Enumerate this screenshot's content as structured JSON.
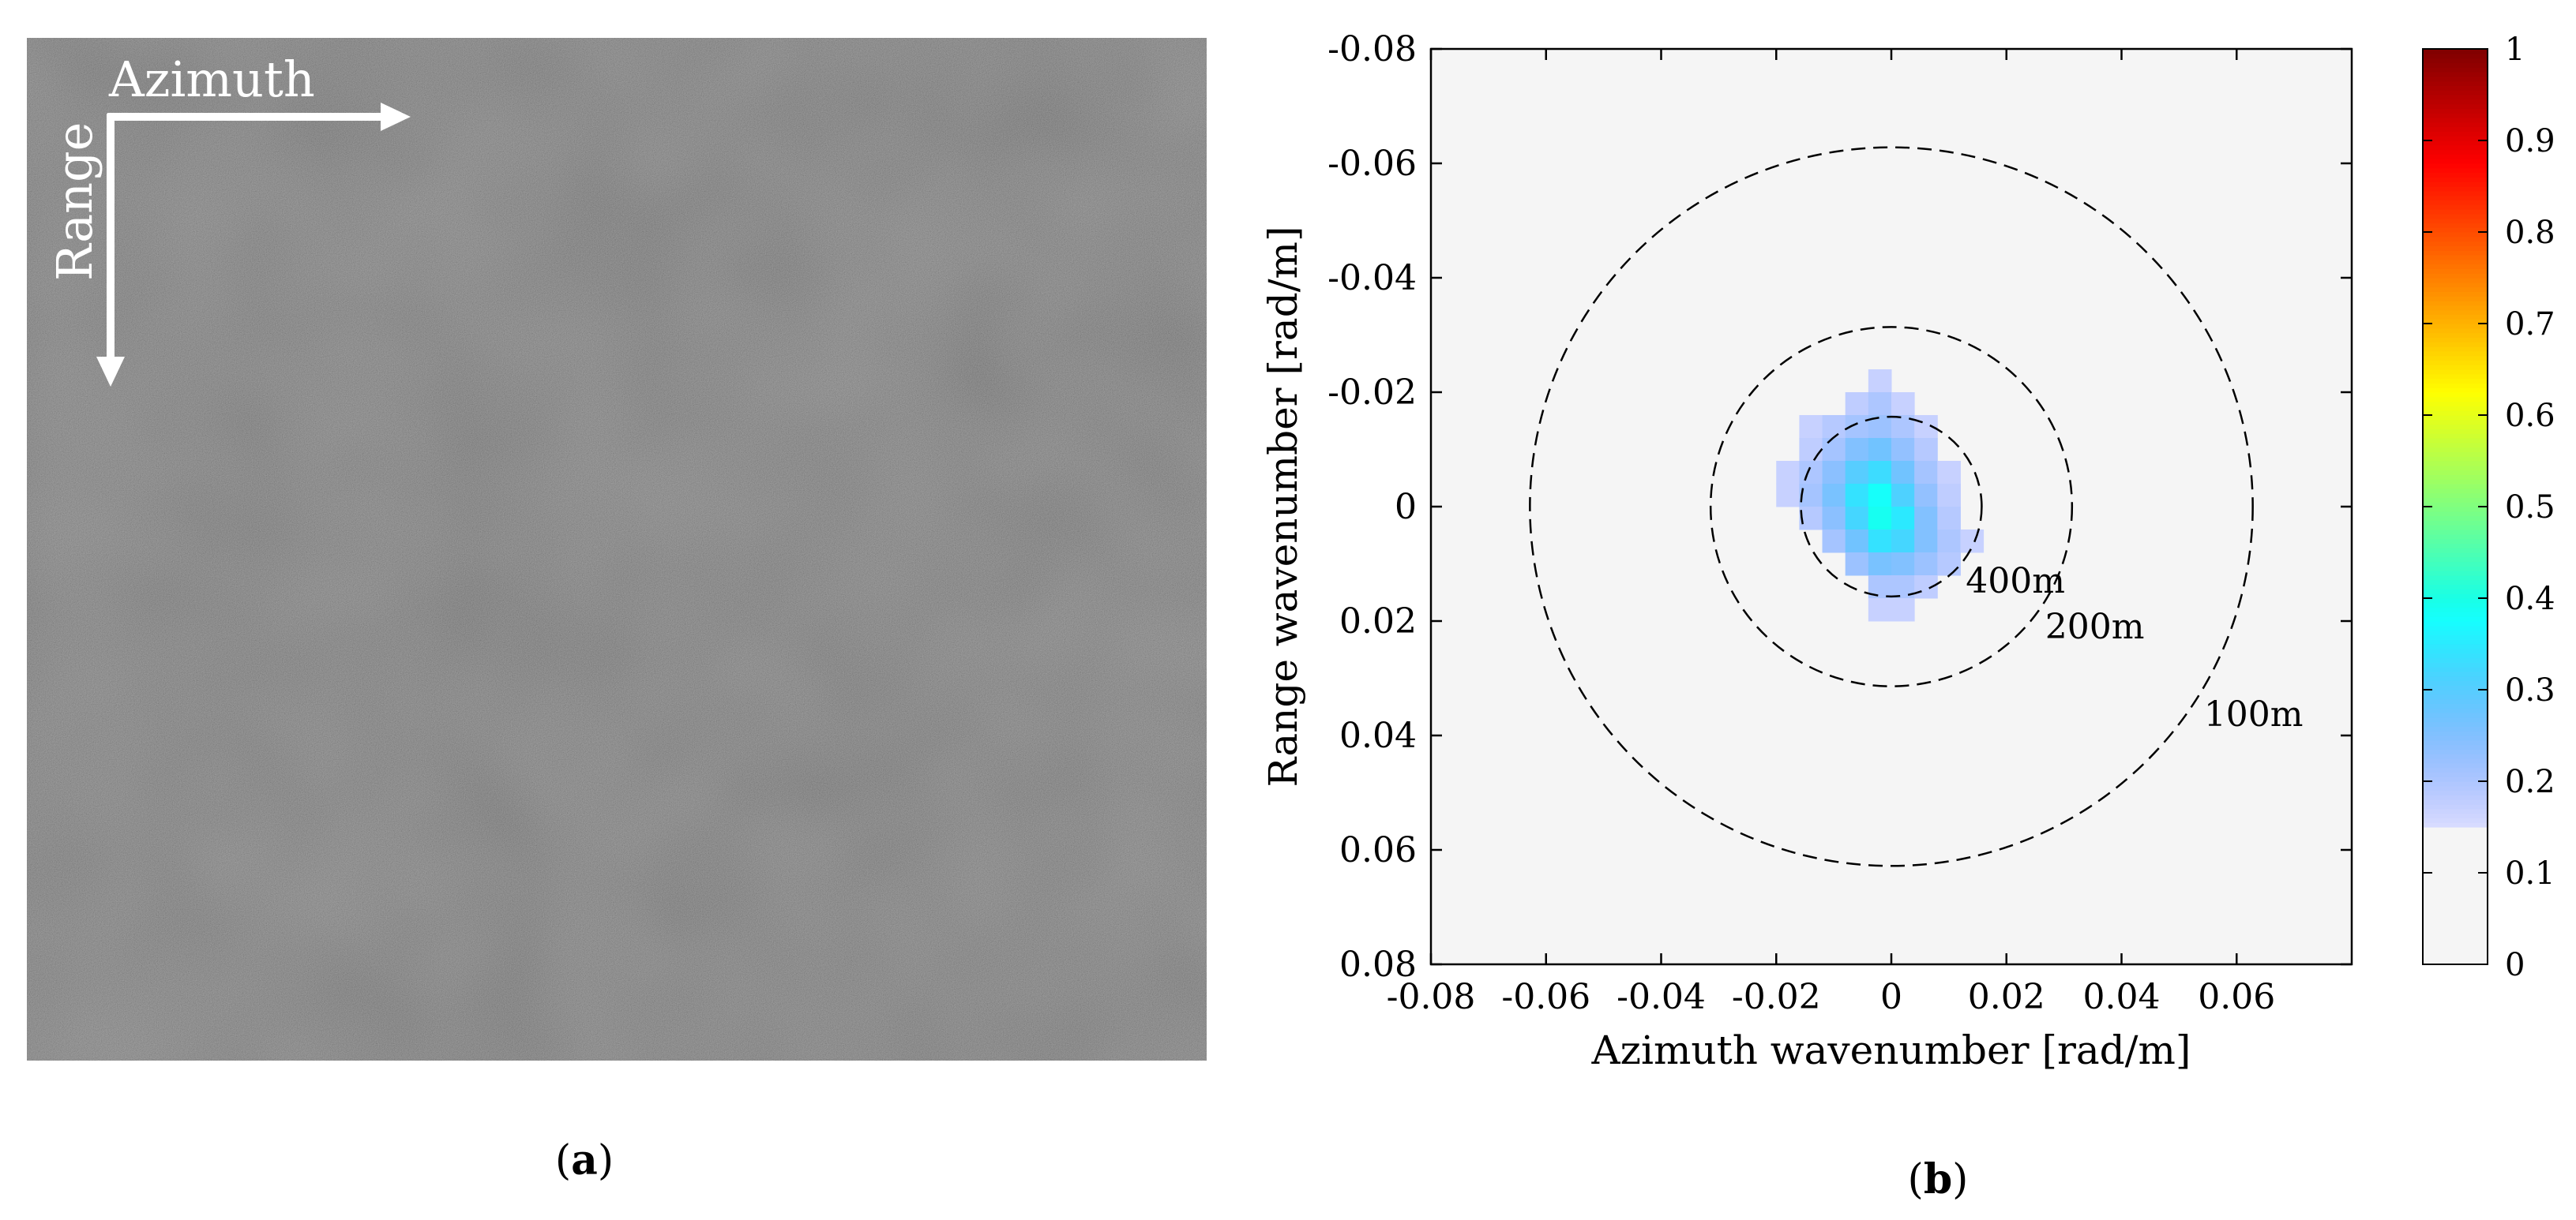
{
  "panel_a": {
    "arrow_labels": {
      "azimuth": "Azimuth",
      "range": "Range"
    },
    "caption": {
      "open": "(",
      "letter": "a",
      "close": ")"
    }
  },
  "panel_b": {
    "caption": {
      "open": "(",
      "letter": "b",
      "close": ")"
    }
  },
  "colors": {
    "sar_base": "#5a5a5a",
    "plot_background": "#f5f5f5",
    "contour_line": "#000000",
    "spectrum_cyan": "#00f0f0"
  },
  "chart_data": {
    "type": "heatmap",
    "title": "",
    "xlabel": "Azimuth wavenumber [rad/m]",
    "ylabel": "Range wavenumber [rad/m]",
    "xlim": [
      -0.08,
      0.08
    ],
    "ylim": [
      -0.08,
      0.08
    ],
    "y_reversed": true,
    "x_ticks": [
      -0.08,
      -0.06,
      -0.04,
      -0.02,
      0,
      0.02,
      0.04,
      0.06
    ],
    "x_tick_labels": [
      "-0.08",
      "-0.06",
      "-0.04",
      "-0.02",
      "0",
      "0.02",
      "0.04",
      "0.06"
    ],
    "y_ticks": [
      -0.08,
      -0.06,
      -0.04,
      -0.02,
      0,
      0.02,
      0.04,
      0.06,
      0.08
    ],
    "y_tick_labels": [
      "-0.08",
      "-0.06",
      "-0.04",
      "-0.02",
      "0",
      "0.02",
      "0.04",
      "0.06",
      "0.08"
    ],
    "grid": false,
    "colorbar": {
      "range": [
        0,
        1
      ],
      "ticks": [
        0,
        0.1,
        0.2,
        0.3,
        0.4,
        0.5,
        0.6,
        0.7,
        0.8,
        0.9,
        1
      ],
      "tick_labels": [
        "0",
        "0.1",
        "0.2",
        "0.3",
        "0.4",
        "0.5",
        "0.6",
        "0.7",
        "0.8",
        "0.9",
        "1"
      ],
      "colormap": "jet",
      "below_threshold_color": "#f5f5f5",
      "threshold": 0.15
    },
    "contours": [
      {
        "wavelength_label": "100m",
        "radius": 0.0628
      },
      {
        "wavelength_label": "200m",
        "radius": 0.0314
      },
      {
        "wavelength_label": "400m",
        "radius": 0.0157
      }
    ],
    "spectrum_cell_size": 0.004,
    "spectrum_cells": [
      {
        "kx": -0.002,
        "ky": -0.022,
        "v": 0.17
      },
      {
        "kx": -0.006,
        "ky": -0.018,
        "v": 0.18
      },
      {
        "kx": -0.002,
        "ky": -0.018,
        "v": 0.2
      },
      {
        "kx": 0.002,
        "ky": -0.018,
        "v": 0.17
      },
      {
        "kx": -0.014,
        "ky": -0.014,
        "v": 0.17
      },
      {
        "kx": -0.01,
        "ky": -0.014,
        "v": 0.19
      },
      {
        "kx": -0.006,
        "ky": -0.014,
        "v": 0.21
      },
      {
        "kx": -0.002,
        "ky": -0.014,
        "v": 0.22
      },
      {
        "kx": 0.002,
        "ky": -0.014,
        "v": 0.2
      },
      {
        "kx": 0.006,
        "ky": -0.014,
        "v": 0.17
      },
      {
        "kx": -0.014,
        "ky": -0.01,
        "v": 0.18
      },
      {
        "kx": -0.01,
        "ky": -0.01,
        "v": 0.21
      },
      {
        "kx": -0.006,
        "ky": -0.01,
        "v": 0.25
      },
      {
        "kx": -0.002,
        "ky": -0.01,
        "v": 0.27
      },
      {
        "kx": 0.002,
        "ky": -0.01,
        "v": 0.23
      },
      {
        "kx": 0.006,
        "ky": -0.01,
        "v": 0.19
      },
      {
        "kx": -0.018,
        "ky": -0.006,
        "v": 0.17
      },
      {
        "kx": -0.014,
        "ky": -0.006,
        "v": 0.2
      },
      {
        "kx": -0.01,
        "ky": -0.006,
        "v": 0.24
      },
      {
        "kx": -0.006,
        "ky": -0.006,
        "v": 0.3
      },
      {
        "kx": -0.002,
        "ky": -0.006,
        "v": 0.33
      },
      {
        "kx": 0.002,
        "ky": -0.006,
        "v": 0.27
      },
      {
        "kx": 0.006,
        "ky": -0.006,
        "v": 0.21
      },
      {
        "kx": 0.01,
        "ky": -0.006,
        "v": 0.17
      },
      {
        "kx": -0.018,
        "ky": -0.002,
        "v": 0.17
      },
      {
        "kx": -0.014,
        "ky": -0.002,
        "v": 0.21
      },
      {
        "kx": -0.01,
        "ky": -0.002,
        "v": 0.26
      },
      {
        "kx": -0.006,
        "ky": -0.002,
        "v": 0.34
      },
      {
        "kx": -0.002,
        "ky": -0.002,
        "v": 0.38
      },
      {
        "kx": 0.002,
        "ky": -0.002,
        "v": 0.31
      },
      {
        "kx": 0.006,
        "ky": -0.002,
        "v": 0.23
      },
      {
        "kx": 0.01,
        "ky": -0.002,
        "v": 0.18
      },
      {
        "kx": -0.014,
        "ky": 0.002,
        "v": 0.19
      },
      {
        "kx": -0.01,
        "ky": 0.002,
        "v": 0.24
      },
      {
        "kx": -0.006,
        "ky": 0.002,
        "v": 0.32
      },
      {
        "kx": -0.002,
        "ky": 0.002,
        "v": 0.39
      },
      {
        "kx": 0.002,
        "ky": 0.002,
        "v": 0.35
      },
      {
        "kx": 0.006,
        "ky": 0.002,
        "v": 0.25
      },
      {
        "kx": 0.01,
        "ky": 0.002,
        "v": 0.19
      },
      {
        "kx": -0.01,
        "ky": 0.006,
        "v": 0.21
      },
      {
        "kx": -0.006,
        "ky": 0.006,
        "v": 0.27
      },
      {
        "kx": -0.002,
        "ky": 0.006,
        "v": 0.34
      },
      {
        "kx": 0.002,
        "ky": 0.006,
        "v": 0.32
      },
      {
        "kx": 0.006,
        "ky": 0.006,
        "v": 0.25
      },
      {
        "kx": 0.01,
        "ky": 0.006,
        "v": 0.2
      },
      {
        "kx": 0.014,
        "ky": 0.006,
        "v": 0.17
      },
      {
        "kx": -0.006,
        "ky": 0.01,
        "v": 0.22
      },
      {
        "kx": -0.002,
        "ky": 0.01,
        "v": 0.26
      },
      {
        "kx": 0.002,
        "ky": 0.01,
        "v": 0.25
      },
      {
        "kx": 0.006,
        "ky": 0.01,
        "v": 0.22
      },
      {
        "kx": 0.01,
        "ky": 0.01,
        "v": 0.19
      },
      {
        "kx": -0.002,
        "ky": 0.014,
        "v": 0.2
      },
      {
        "kx": 0.002,
        "ky": 0.014,
        "v": 0.2
      },
      {
        "kx": 0.006,
        "ky": 0.014,
        "v": 0.18
      },
      {
        "kx": -0.002,
        "ky": 0.018,
        "v": 0.17
      },
      {
        "kx": 0.002,
        "ky": 0.018,
        "v": 0.17
      }
    ]
  }
}
